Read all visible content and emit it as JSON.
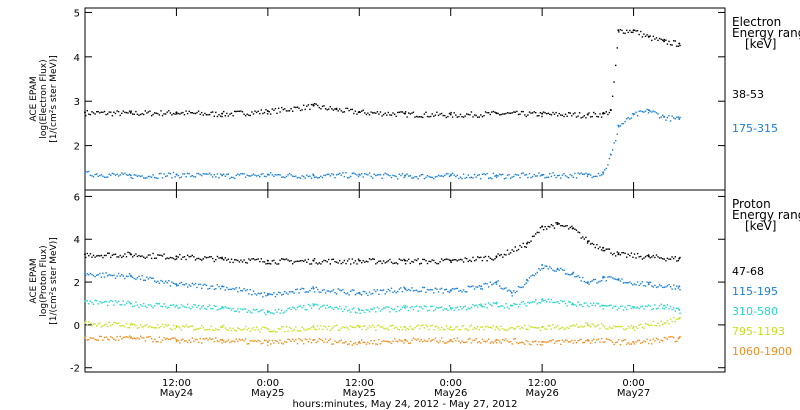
{
  "chart_data": [
    {
      "type": "scatter",
      "panel": "electron",
      "ylabel_lines": [
        "ACE EPAM",
        "log(Electron Flux)",
        "[1/(cm²s ster MeV)]"
      ],
      "legend_title_lines": [
        "Electron",
        "Energy ranges",
        "[keV]"
      ],
      "ylim": [
        1,
        5.1
      ],
      "yticks": [
        2,
        3,
        4,
        5
      ],
      "series": [
        {
          "name": "38-53",
          "color": "#000000",
          "x": [
            0,
            6,
            12,
            18,
            24,
            30,
            33,
            36,
            42,
            48,
            54,
            60,
            66,
            68,
            69,
            70,
            72,
            74,
            76,
            78
          ],
          "y": [
            2.75,
            2.74,
            2.75,
            2.72,
            2.78,
            2.9,
            2.82,
            2.76,
            2.72,
            2.7,
            2.73,
            2.72,
            2.7,
            2.72,
            2.8,
            4.6,
            4.6,
            4.45,
            4.35,
            4.3
          ]
        },
        {
          "name": "175-315",
          "color": "#1a7fd6",
          "x": [
            0,
            6,
            12,
            18,
            24,
            30,
            36,
            42,
            48,
            54,
            60,
            66,
            68,
            69,
            70,
            72,
            74,
            76,
            78
          ],
          "y": [
            1.38,
            1.33,
            1.35,
            1.33,
            1.35,
            1.33,
            1.35,
            1.32,
            1.33,
            1.33,
            1.34,
            1.35,
            1.4,
            1.8,
            2.45,
            2.7,
            2.8,
            2.65,
            2.6
          ]
        }
      ]
    },
    {
      "type": "scatter",
      "panel": "proton",
      "ylabel_lines": [
        "ACE EPAM",
        "log(Proton Flux)",
        "[1/(cm²s ster MeV)]"
      ],
      "legend_title_lines": [
        "Proton",
        "Energy ranges",
        "[keV]"
      ],
      "ylim": [
        -2.2,
        6.3
      ],
      "yticks": [
        -2,
        0,
        2,
        4,
        6
      ],
      "series": [
        {
          "name": "47-68",
          "color": "#000000",
          "x": [
            0,
            6,
            12,
            18,
            24,
            30,
            36,
            42,
            48,
            54,
            58,
            60,
            62,
            64,
            66,
            68,
            70,
            74,
            78
          ],
          "y": [
            3.3,
            3.3,
            3.2,
            3.1,
            3.0,
            3.0,
            3.0,
            3.0,
            3.0,
            3.2,
            3.8,
            4.6,
            4.7,
            4.5,
            3.9,
            3.6,
            3.3,
            3.2,
            3.1
          ]
        },
        {
          "name": "115-195",
          "color": "#1a7fd6",
          "x": [
            0,
            6,
            12,
            18,
            24,
            30,
            36,
            42,
            48,
            52,
            54,
            56,
            58,
            60,
            62,
            64,
            66,
            68,
            70,
            74,
            78
          ],
          "y": [
            2.4,
            2.3,
            1.9,
            1.8,
            1.4,
            1.7,
            1.5,
            1.7,
            1.6,
            1.8,
            2.0,
            1.5,
            2.1,
            2.8,
            2.6,
            2.4,
            2.0,
            2.2,
            2.1,
            1.9,
            1.8
          ]
        },
        {
          "name": "310-580",
          "color": "#22d6c8",
          "x": [
            0,
            6,
            12,
            18,
            24,
            30,
            36,
            42,
            48,
            52,
            54,
            56,
            60,
            64,
            68,
            72,
            76,
            78
          ],
          "y": [
            1.1,
            1.0,
            0.9,
            0.8,
            0.6,
            0.9,
            0.7,
            0.8,
            0.8,
            0.9,
            1.0,
            0.9,
            1.2,
            1.0,
            0.9,
            0.8,
            0.9,
            0.7
          ]
        },
        {
          "name": "795-1193",
          "color": "#c8e01e",
          "x": [
            0,
            6,
            12,
            18,
            24,
            30,
            36,
            42,
            48,
            54,
            60,
            66,
            72,
            78
          ],
          "y": [
            0.1,
            0.0,
            -0.1,
            -0.1,
            -0.2,
            -0.1,
            -0.1,
            -0.1,
            -0.1,
            -0.1,
            -0.1,
            0.0,
            -0.1,
            0.3
          ]
        },
        {
          "name": "1060-1900",
          "color": "#f08c1a",
          "x": [
            0,
            6,
            12,
            18,
            24,
            30,
            36,
            42,
            48,
            54,
            60,
            66,
            72,
            78
          ],
          "y": [
            -0.6,
            -0.6,
            -0.7,
            -0.7,
            -0.8,
            -0.7,
            -0.8,
            -0.7,
            -0.7,
            -0.7,
            -0.8,
            -0.7,
            -0.8,
            -0.6
          ]
        }
      ]
    }
  ],
  "x_axis": {
    "xlabel": "hours:minutes, May 24, 2012 - May 27, 2012",
    "ticks": [
      {
        "x": 12,
        "time": "12:00",
        "date": "May24"
      },
      {
        "x": 24,
        "time": "0:00",
        "date": "May25"
      },
      {
        "x": 36,
        "time": "12:00",
        "date": "May25"
      },
      {
        "x": 48,
        "time": "0:00",
        "date": "May26"
      },
      {
        "x": 60,
        "time": "12:00",
        "date": "May26"
      },
      {
        "x": 72,
        "time": "0:00",
        "date": "May27"
      }
    ],
    "xlim": [
      0,
      84
    ]
  },
  "colors": {
    "axis": "#000000",
    "background": "#ffffff"
  }
}
